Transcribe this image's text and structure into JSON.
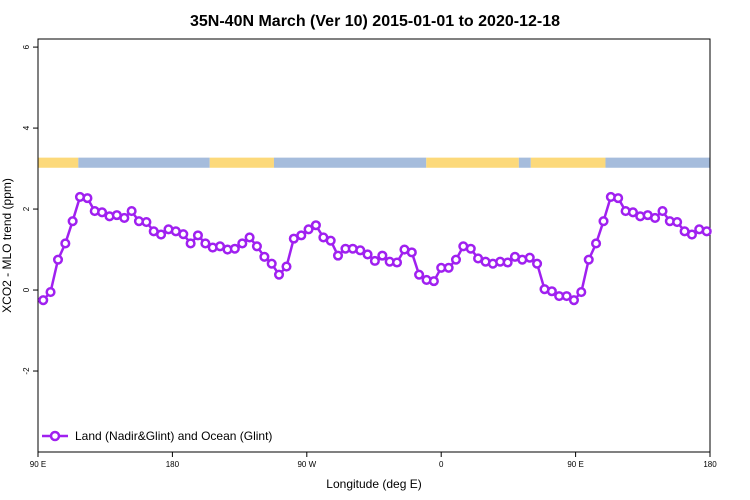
{
  "chart_data": {
    "type": "line",
    "title": "35N-40N March (Ver 10)   2015-01-01 to 2020-12-18",
    "xlabel": "Longitude (deg E)",
    "ylabel": "XCO2 - MLO trend (ppm)",
    "xlim": [
      90,
      540
    ],
    "ylim": [
      -4,
      6.2
    ],
    "y_ticks": [
      {
        "value": -2,
        "label": "-2"
      },
      {
        "value": 0,
        "label": "0"
      },
      {
        "value": 2,
        "label": "2"
      },
      {
        "value": 4,
        "label": "4"
      },
      {
        "value": 6,
        "label": "6"
      }
    ],
    "x_ticks": [
      {
        "value": 90,
        "label": "90 E"
      },
      {
        "value": 180,
        "label": "180"
      },
      {
        "value": 270,
        "label": "90 W"
      },
      {
        "value": 360,
        "label": "0"
      },
      {
        "value": 450,
        "label": "90 E"
      },
      {
        "value": 540,
        "label": "180"
      }
    ],
    "series": [
      {
        "name": "Land (Nadir&Glint) and Ocean (Glint)",
        "color": "#a020f0",
        "x": [
          93.5,
          98.4,
          103.4,
          108.3,
          113.2,
          118.1,
          123.1,
          128.0,
          132.9,
          137.9,
          142.8,
          147.8,
          152.7,
          157.6,
          162.6,
          167.5,
          172.4,
          177.4,
          182.3,
          187.3,
          192.2,
          197.1,
          202.1,
          207.0,
          211.9,
          216.9,
          221.8,
          226.8,
          231.7,
          236.6,
          241.6,
          246.5,
          251.4,
          256.4,
          261.3,
          266.3,
          271.2,
          276.1,
          281.1,
          286.0,
          290.9,
          295.9,
          300.8,
          305.8,
          310.7,
          315.6,
          320.6,
          325.5,
          330.4,
          335.4,
          340.3,
          345.2,
          350.2,
          355.1,
          360.0,
          365.0,
          369.9,
          374.8,
          379.8,
          384.7,
          389.7,
          394.6,
          399.5,
          404.5,
          409.4,
          414.3,
          419.3,
          424.2,
          429.2,
          434.1,
          439.0,
          444.0,
          448.9,
          453.8,
          458.8,
          463.7,
          468.7,
          473.6,
          478.5,
          483.5,
          488.4,
          493.3,
          498.3,
          503.2,
          508.2,
          513.1,
          518.0,
          523.0,
          527.9,
          532.8,
          537.8
        ],
        "values": [
          -0.25,
          -0.05,
          0.75,
          1.15,
          1.7,
          2.3,
          2.27,
          1.95,
          1.92,
          1.82,
          1.85,
          1.78,
          1.95,
          1.7,
          1.68,
          1.45,
          1.37,
          1.5,
          1.45,
          1.38,
          1.15,
          1.35,
          1.15,
          1.05,
          1.08,
          1.0,
          1.02,
          1.15,
          1.3,
          1.08,
          0.82,
          0.65,
          0.38,
          0.58,
          1.27,
          1.35,
          1.5,
          1.6,
          1.3,
          1.22,
          0.85,
          1.02,
          1.02,
          0.98,
          0.88,
          0.72,
          0.85,
          0.7,
          0.68,
          1.0,
          0.93,
          0.38,
          0.25,
          0.22,
          0.55,
          0.55,
          0.75,
          1.08,
          1.02,
          0.78,
          0.7,
          0.65,
          0.7,
          0.68,
          0.82,
          0.75,
          0.8,
          0.65,
          0.02,
          -0.03,
          -0.15,
          -0.15,
          -0.25,
          -0.05,
          0.75,
          1.15,
          1.7,
          2.3,
          2.27,
          1.95,
          1.92,
          1.82,
          1.85,
          1.78,
          1.95,
          1.7,
          1.68,
          1.45,
          1.37,
          1.5,
          1.45
        ]
      }
    ],
    "surface_band": {
      "y_range": [
        3.02,
        3.27
      ],
      "ocean_color": "#a5bcdc",
      "land_color": "#fcd97a",
      "segments": [
        {
          "from": 90,
          "to": 117,
          "type": "land"
        },
        {
          "from": 117,
          "to": 205,
          "type": "ocean"
        },
        {
          "from": 205,
          "to": 248,
          "type": "land"
        },
        {
          "from": 248,
          "to": 350,
          "type": "ocean"
        },
        {
          "from": 350,
          "to": 412,
          "type": "land"
        },
        {
          "from": 412,
          "to": 420,
          "type": "ocean"
        },
        {
          "from": 420,
          "to": 470,
          "type": "land"
        },
        {
          "from": 470,
          "to": 540,
          "type": "ocean"
        }
      ]
    },
    "legend": {
      "position": "bottom-left",
      "label": "Land (Nadir&Glint) and Ocean (Glint)"
    }
  }
}
